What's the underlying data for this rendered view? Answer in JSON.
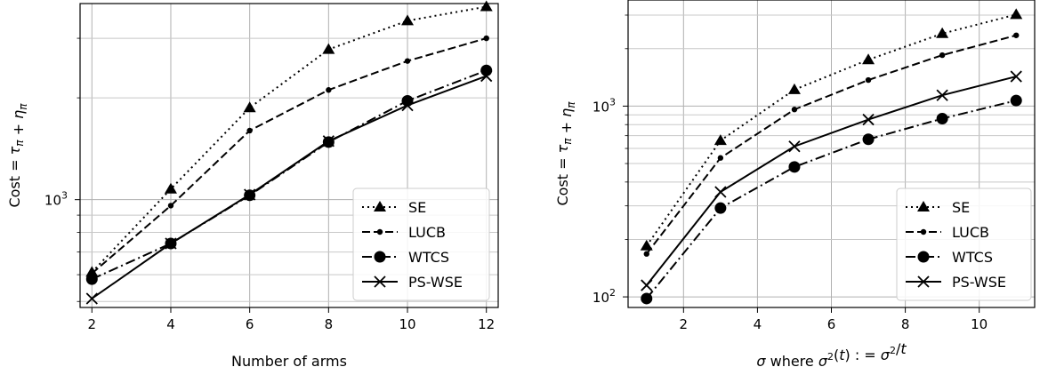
{
  "chart_data": [
    {
      "type": "line",
      "xlabel": "Number of arms",
      "ylabel": "Cost = τ_π + η_π",
      "xlim": [
        1.7,
        12.3
      ],
      "ylim": [
        480,
        3800
      ],
      "yscale": "log",
      "xticks": [
        2,
        4,
        6,
        8,
        10,
        12
      ],
      "yticks_major": [
        1000
      ],
      "yticks_major_labels": [
        "10^3"
      ],
      "yticks_minor": [
        500,
        600,
        700,
        800,
        900,
        2000,
        3000
      ],
      "grid": "on (major and minor)",
      "legend_position": "lower-right",
      "x": [
        2,
        4,
        6,
        8,
        10,
        12
      ],
      "series": [
        {
          "name": "SE",
          "style": "dotted",
          "marker": "triangle",
          "values": [
            610,
            1075,
            1870,
            2780,
            3380,
            3720
          ]
        },
        {
          "name": "LUCB",
          "style": "dashed",
          "marker": "small-dot",
          "values": [
            605,
            960,
            1600,
            2110,
            2570,
            3000
          ]
        },
        {
          "name": "WTCS",
          "style": "dash-dot",
          "marker": "circle",
          "values": [
            582,
            742,
            1030,
            1480,
            1960,
            2410
          ]
        },
        {
          "name": "PS-WSE",
          "style": "solid",
          "marker": "x",
          "values": [
            510,
            742,
            1035,
            1490,
            1900,
            2320
          ]
        }
      ]
    },
    {
      "type": "line",
      "xlabel": "σ where σ²(t) := σ²/t",
      "ylabel": "Cost = τ_π + η_π",
      "xlim": [
        0.5,
        11.5
      ],
      "ylim": [
        88,
        3600
      ],
      "yscale": "log",
      "xticks": [
        2,
        4,
        6,
        8,
        10
      ],
      "yticks_major": [
        100,
        1000
      ],
      "yticks_major_labels": [
        "10^2",
        "10^3"
      ],
      "yticks_minor": [
        200,
        300,
        400,
        500,
        600,
        700,
        800,
        900,
        2000,
        3000
      ],
      "grid": "on (major and minor)",
      "legend_position": "lower-right",
      "x": [
        1,
        3,
        5,
        7,
        9,
        11
      ],
      "series": [
        {
          "name": "SE",
          "style": "dotted",
          "marker": "triangle",
          "values": [
            185,
            660,
            1220,
            1750,
            2400,
            3020
          ]
        },
        {
          "name": "LUCB",
          "style": "dashed",
          "marker": "small-dot",
          "values": [
            168,
            535,
            960,
            1370,
            1850,
            2350
          ]
        },
        {
          "name": "WTCS",
          "style": "dash-dot",
          "marker": "circle",
          "values": [
            98,
            292,
            480,
            670,
            860,
            1070
          ]
        },
        {
          "name": "PS-WSE",
          "style": "solid",
          "marker": "x",
          "values": [
            115,
            355,
            615,
            850,
            1140,
            1430
          ]
        }
      ]
    }
  ]
}
